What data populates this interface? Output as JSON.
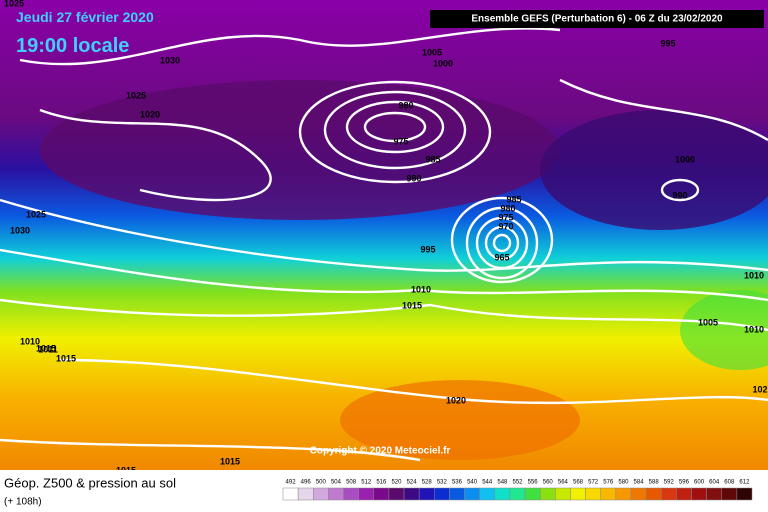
{
  "header": {
    "date": "Jeudi 27 février 2020",
    "time": "19:00 locale",
    "run": "Ensemble GEFS  (Perturbation 6)  - 06 Z du 23/02/2020"
  },
  "isobar_labels": [
    1025,
    1030,
    1025,
    1020,
    1005,
    1000,
    995,
    980,
    975,
    985,
    990,
    1000,
    990,
    985,
    980,
    975,
    970,
    965,
    995,
    1010,
    1015,
    1025,
    1030,
    1010,
    1015,
    1011,
    1015,
    1020,
    1005,
    1010,
    1010,
    1015,
    1015,
    102
  ],
  "copyright": "Copyright © 2020 Meteociel.fr",
  "footer": {
    "title": "Géop. Z500 & pression au sol",
    "lead": "(+ 108h)"
  },
  "scale": {
    "values": [
      492,
      496,
      500,
      504,
      508,
      512,
      516,
      520,
      524,
      528,
      532,
      536,
      540,
      544,
      548,
      552,
      556,
      560,
      564,
      568,
      572,
      576,
      580,
      584,
      588,
      592,
      596,
      600,
      604,
      608,
      612
    ],
    "colors": [
      "#ffffff",
      "#e6d6ec",
      "#d2a8de",
      "#c07ad0",
      "#a84ec2",
      "#9a20b0",
      "#7a0a8c",
      "#5a0a6c",
      "#3c0a84",
      "#2014b8",
      "#0a2ed0",
      "#0a5ae0",
      "#0a8ef0",
      "#10c0f0",
      "#10e0c8",
      "#20e890",
      "#40e040",
      "#8ae010",
      "#c8e800",
      "#f0f000",
      "#f8d800",
      "#f8b800",
      "#f89800",
      "#f07800",
      "#e85800",
      "#d83810",
      "#c02010",
      "#a01010",
      "#801010",
      "#600808",
      "#300404"
    ]
  }
}
